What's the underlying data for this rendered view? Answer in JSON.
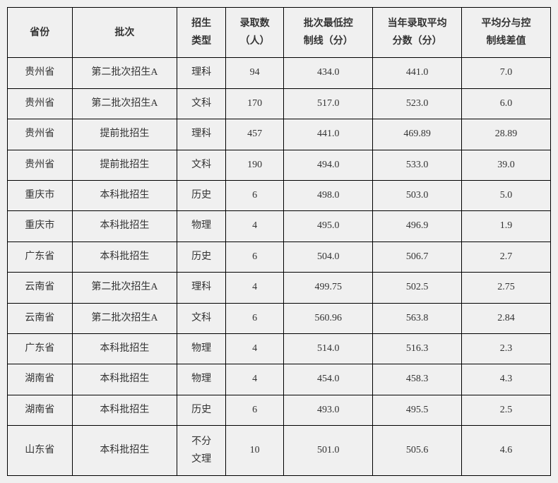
{
  "table": {
    "columns": [
      "省份",
      "批次",
      "招生\n类型",
      "录取数\n（人）",
      "批次最低控\n制线（分）",
      "当年录取平均\n分数（分）",
      "平均分与控\n制线差值"
    ],
    "rows": [
      [
        "贵州省",
        "第二批次招生A",
        "理科",
        "94",
        "434.0",
        "441.0",
        "7.0"
      ],
      [
        "贵州省",
        "第二批次招生A",
        "文科",
        "170",
        "517.0",
        "523.0",
        "6.0"
      ],
      [
        "贵州省",
        "提前批招生",
        "理科",
        "457",
        "441.0",
        "469.89",
        "28.89"
      ],
      [
        "贵州省",
        "提前批招生",
        "文科",
        "190",
        "494.0",
        "533.0",
        "39.0"
      ],
      [
        "重庆市",
        "本科批招生",
        "历史",
        "6",
        "498.0",
        "503.0",
        "5.0"
      ],
      [
        "重庆市",
        "本科批招生",
        "物理",
        "4",
        "495.0",
        "496.9",
        "1.9"
      ],
      [
        "广东省",
        "本科批招生",
        "历史",
        "6",
        "504.0",
        "506.7",
        "2.7"
      ],
      [
        "云南省",
        "第二批次招生A",
        "理科",
        "4",
        "499.75",
        "502.5",
        "2.75"
      ],
      [
        "云南省",
        "第二批次招生A",
        "文科",
        "6",
        "560.96",
        "563.8",
        "2.84"
      ],
      [
        "广东省",
        "本科批招生",
        "物理",
        "4",
        "514.0",
        "516.3",
        "2.3"
      ],
      [
        "湖南省",
        "本科批招生",
        "物理",
        "4",
        "454.0",
        "458.3",
        "4.3"
      ],
      [
        "湖南省",
        "本科批招生",
        "历史",
        "6",
        "493.0",
        "495.5",
        "2.5"
      ],
      [
        "山东省",
        "本科批招生",
        "不分\n文理",
        "10",
        "501.0",
        "505.6",
        "4.6"
      ]
    ],
    "border_color": "#000000",
    "background_color": "#f0f0f0",
    "text_color": "#333333",
    "font_size_pt": 11,
    "header_font_weight": "bold"
  }
}
